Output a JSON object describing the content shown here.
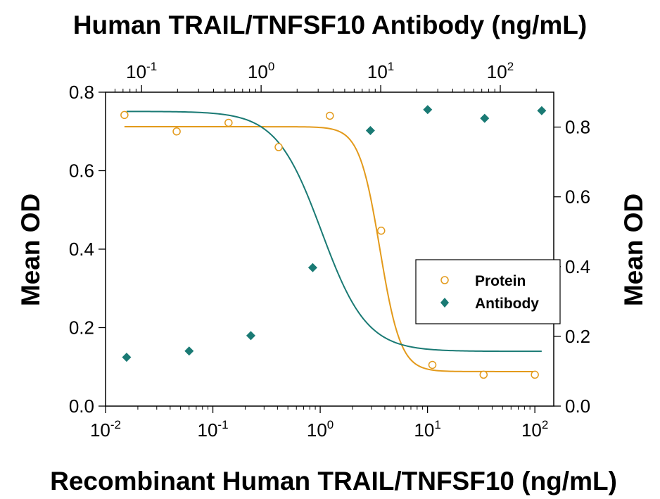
{
  "chart_data": {
    "type": "scatter",
    "title": "Human TRAIL/TNFSF10 Antibody (ng/mL)",
    "xlabel": "Recombinant Human TRAIL/TNFSF10 (ng/mL)",
    "ylabel_left": "Mean OD",
    "ylabel_right": "Mean OD",
    "x_scale": "log",
    "xlim": [
      0.01,
      150
    ],
    "x_ticks": [
      {
        "base": "10",
        "exp": "-2",
        "value": 0.01
      },
      {
        "base": "10",
        "exp": "-1",
        "value": 0.1
      },
      {
        "base": "10",
        "exp": "0",
        "value": 1
      },
      {
        "base": "10",
        "exp": "1",
        "value": 10
      },
      {
        "base": "10",
        "exp": "2",
        "value": 100
      }
    ],
    "x2_scale": "log",
    "x2lim": [
      0.05,
      280
    ],
    "x2_ticks": [
      {
        "base": "10",
        "exp": "-1",
        "value": 0.1
      },
      {
        "base": "10",
        "exp": "0",
        "value": 1
      },
      {
        "base": "10",
        "exp": "1",
        "value": 10
      },
      {
        "base": "10",
        "exp": "2",
        "value": 100
      }
    ],
    "ylim_left": [
      0.0,
      0.8
    ],
    "y_ticks_left": [
      "0.0",
      "0.2",
      "0.4",
      "0.6",
      "0.8"
    ],
    "ylim_right": [
      0.0,
      0.9
    ],
    "y_ticks_right": [
      "0.0",
      "0.2",
      "0.4",
      "0.6",
      "0.8"
    ],
    "grid": false,
    "legend_position": "right",
    "series": [
      {
        "name": "Protein",
        "marker": "open-circle",
        "color": "#E39A1B",
        "axis": "bottom-left",
        "points": [
          {
            "x": 0.015,
            "y": 0.742
          },
          {
            "x": 0.046,
            "y": 0.7
          },
          {
            "x": 0.14,
            "y": 0.722
          },
          {
            "x": 0.41,
            "y": 0.66
          },
          {
            "x": 1.23,
            "y": 0.74
          },
          {
            "x": 3.7,
            "y": 0.447
          },
          {
            "x": 11.1,
            "y": 0.105
          },
          {
            "x": 33.3,
            "y": 0.08
          },
          {
            "x": 100,
            "y": 0.08
          }
        ],
        "fit": {
          "top": 0.712,
          "bottom": 0.088,
          "ec50": 3.6,
          "hill": 4.5
        }
      },
      {
        "name": "Antibody",
        "marker": "filled-diamond",
        "color": "#1A7A74",
        "axis": "top-right",
        "points": [
          {
            "x": 0.075,
            "y": 0.14
          },
          {
            "x": 0.25,
            "y": 0.158
          },
          {
            "x": 0.82,
            "y": 0.202
          },
          {
            "x": 2.7,
            "y": 0.397
          },
          {
            "x": 8.2,
            "y": 0.79
          },
          {
            "x": 24.7,
            "y": 0.85
          },
          {
            "x": 74,
            "y": 0.825
          },
          {
            "x": 222,
            "y": 0.847
          }
        ],
        "fit": {
          "top": 0.845,
          "bottom": 0.157,
          "ec50": 3.2,
          "hill": 2.3
        }
      }
    ]
  }
}
